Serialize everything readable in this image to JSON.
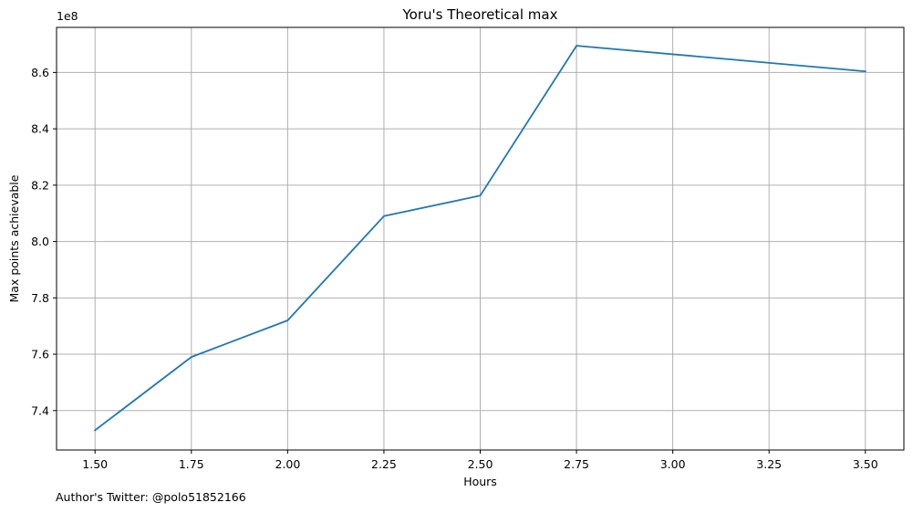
{
  "chart_data": {
    "type": "line",
    "title": "Yoru's Theoretical max",
    "xlabel": "Hours",
    "ylabel": "Max points achievable",
    "y_offset_label": "1e8",
    "grid": true,
    "xlim": [
      1.4,
      3.6
    ],
    "ylim": [
      7.26,
      8.76
    ],
    "xticks": [
      1.5,
      1.75,
      2.0,
      2.25,
      2.5,
      2.75,
      3.0,
      3.25,
      3.5
    ],
    "xtick_labels": [
      "1.50",
      "1.75",
      "2.00",
      "2.25",
      "2.50",
      "2.75",
      "3.00",
      "3.25",
      "3.50"
    ],
    "yticks": [
      7.4,
      7.6,
      7.8,
      8.0,
      8.2,
      8.4,
      8.6
    ],
    "ytick_labels": [
      "7.4",
      "7.6",
      "7.8",
      "8.0",
      "8.2",
      "8.4",
      "8.6"
    ],
    "series": [
      {
        "color": "#1f77b4",
        "x": [
          1.5,
          1.75,
          2.0,
          2.25,
          2.5,
          2.75,
          3.5
        ],
        "y": [
          7.33,
          7.59,
          7.72,
          8.09,
          8.163,
          8.695,
          8.604
        ]
      }
    ]
  },
  "footer": {
    "author_note": "Author's Twitter: @polo51852166"
  }
}
